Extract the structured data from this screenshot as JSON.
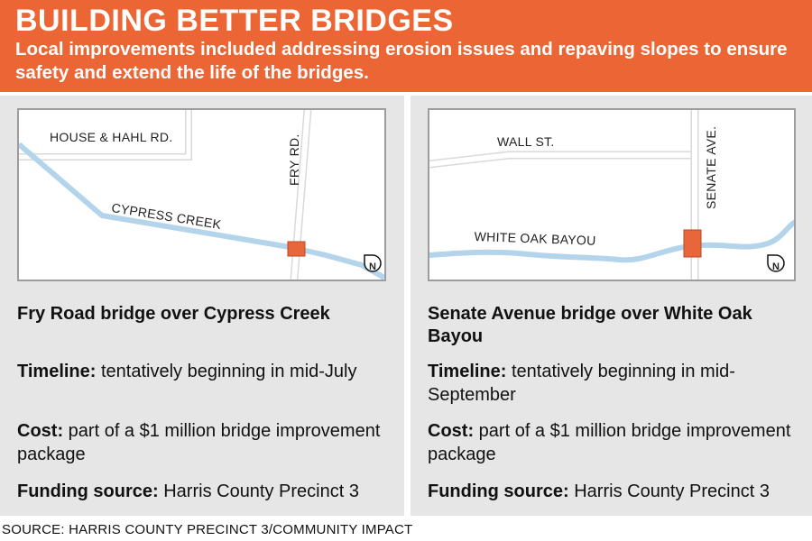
{
  "header": {
    "title": "BUILDING BETTER BRIDGES",
    "subtitle": "Local improvements included addressing erosion issues and repaving slopes to ensure safety and extend the life of the bridges."
  },
  "colors": {
    "header_bg": "#ec6534",
    "panel_bg": "#e6e6e6",
    "water": "#b3d4ea",
    "bridge_marker": "#e8663a",
    "road": "#ffffff"
  },
  "left": {
    "map": {
      "road_labels": [
        "HOUSE & HAHL RD.",
        "FRY RD."
      ],
      "water_label": "CYPRESS CREEK",
      "north_label": "N"
    },
    "bridge_name": "Fry Road bridge over Cypress Creek",
    "timeline_key": "Timeline:",
    "timeline_value": "tentatively beginning in mid-July",
    "cost_key": "Cost:",
    "cost_value": "part of a $1 million bridge improvement package",
    "funding_key": "Funding source:",
    "funding_value": "Harris County Precinct 3"
  },
  "right": {
    "map": {
      "road_labels": [
        "WALL ST.",
        "SENATE AVE."
      ],
      "water_label": "WHITE OAK BAYOU",
      "north_label": "N"
    },
    "bridge_name": "Senate Avenue bridge over White Oak Bayou",
    "timeline_key": "Timeline:",
    "timeline_value": "tentatively beginning in mid-September",
    "cost_key": "Cost:",
    "cost_value": "part of a $1 million bridge improvement package",
    "funding_key": "Funding source:",
    "funding_value": "Harris County Precinct 3"
  },
  "source": "SOURCE: HARRIS COUNTY PRECINCT 3/COMMUNITY IMPACT"
}
